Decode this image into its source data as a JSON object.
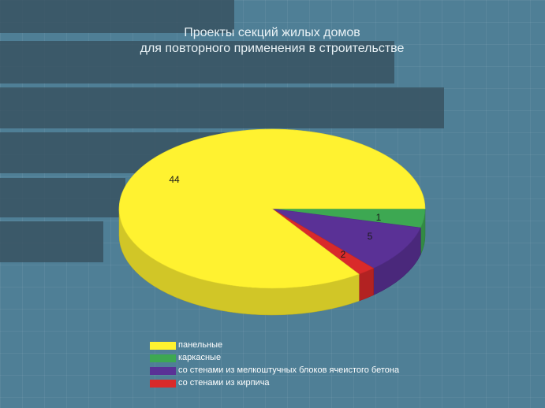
{
  "slide": {
    "background": "#4f7f96"
  },
  "chart_data": {
    "type": "pie",
    "title": "Проекты секций жилых домов",
    "subtitle": "для повторного применения в строительстве",
    "categories": [
      "панельные",
      "каркасные",
      "со стенами из мелкоштучных блоков ячеистого бетона",
      "со стенами из кирпича"
    ],
    "values": [
      44,
      2,
      5,
      1
    ],
    "colors": [
      "#fff230",
      "#3da852",
      "#5a3196",
      "#d92a2a"
    ],
    "data_labels": [
      "44",
      "2",
      "5",
      "1"
    ],
    "legend_placement": "bottom",
    "three_d": true
  }
}
